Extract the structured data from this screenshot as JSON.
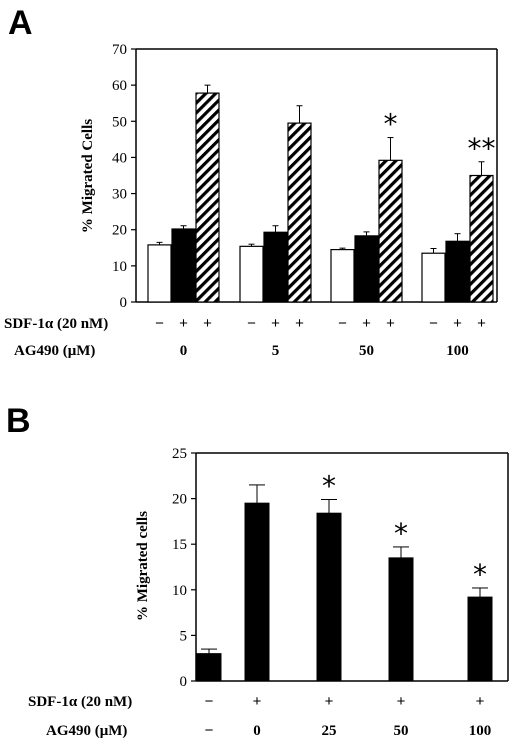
{
  "panels": {
    "a": {
      "letter": "A",
      "ylabel": "% Migrated Cells",
      "row1_label": "SDF-1α (20 nM)",
      "row2_label": "AG490 (μM)",
      "row1_signs": [
        "−",
        "+",
        "+",
        "−",
        "+",
        "+",
        "−",
        "+",
        "+",
        "−",
        "+",
        "+"
      ],
      "row2_values": [
        "0",
        "5",
        "50",
        "100"
      ]
    },
    "b": {
      "letter": "B",
      "ylabel": "% Migrated cells",
      "row1_label": "SDF-1α (20 nM)",
      "row2_label": "AG490 (μM)",
      "row1_signs": [
        "−",
        "+",
        "+",
        "+",
        "+"
      ],
      "row2_values": [
        "−",
        "0",
        "25",
        "50",
        "100"
      ]
    }
  },
  "chart_data": [
    {
      "type": "bar",
      "categories": [
        "0",
        "5",
        "50",
        "100"
      ],
      "ylabel": "% Migrated Cells",
      "ylim": [
        0,
        70
      ],
      "yticks": [
        0,
        10,
        20,
        30,
        40,
        50,
        60,
        70
      ],
      "grid": false,
      "series": [
        {
          "fill": "white",
          "values": [
            15.8,
            15.4,
            14.5,
            13.5
          ],
          "errors": [
            0.7,
            0.6,
            0.4,
            1.3
          ]
        },
        {
          "fill": "black",
          "values": [
            20.2,
            19.3,
            18.3,
            16.8
          ],
          "errors": [
            0.9,
            1.8,
            1.1,
            2.1
          ]
        },
        {
          "fill": "hatched",
          "values": [
            57.8,
            49.5,
            39.2,
            35.0
          ],
          "errors": [
            2.2,
            4.8,
            6.3,
            3.8
          ]
        }
      ],
      "significance": [
        null,
        null,
        "*",
        "**"
      ]
    },
    {
      "type": "bar",
      "categories": [
        "−",
        "0",
        "25",
        "50",
        "100"
      ],
      "ylabel": "% Migrated cells",
      "ylim": [
        0,
        25
      ],
      "yticks": [
        0,
        5,
        10,
        15,
        20,
        25
      ],
      "grid": false,
      "series": [
        {
          "fill": "black",
          "values": [
            3.0,
            19.5,
            18.4,
            13.5,
            9.2
          ],
          "errors": [
            0.5,
            2.0,
            1.5,
            1.2,
            1.0
          ]
        }
      ],
      "significance": [
        null,
        null,
        "*",
        "*",
        "*"
      ]
    }
  ]
}
